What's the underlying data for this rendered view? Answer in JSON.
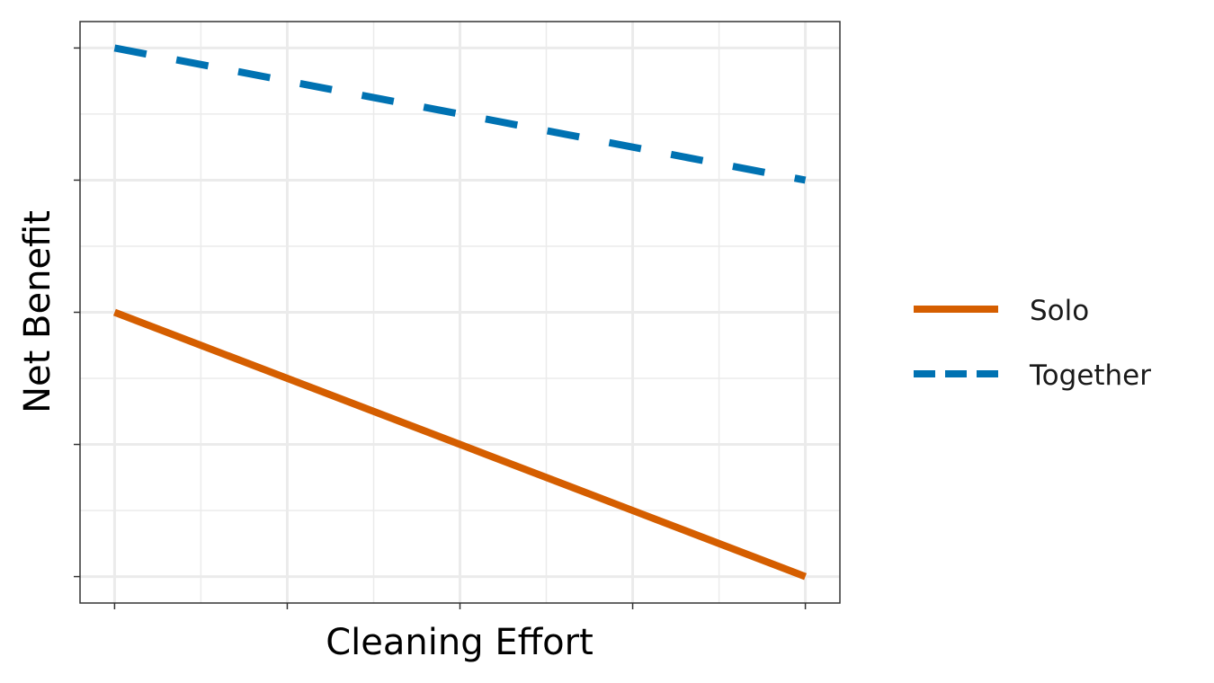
{
  "chart_data": {
    "type": "line",
    "title": "",
    "xlabel": "Cleaning Effort",
    "ylabel": "Net Benefit",
    "x": [
      0,
      1,
      2,
      3,
      4
    ],
    "xlim": [
      -0.2,
      4.2
    ],
    "ylim": [
      -0.2,
      4.2
    ],
    "grid": true,
    "legend": "right",
    "series": [
      {
        "name": "Solo",
        "values": [
          2,
          1.5,
          1,
          0.5,
          0
        ],
        "color": "#D55E00",
        "dash": "solid"
      },
      {
        "name": "Together",
        "values": [
          4,
          3.75,
          3.5,
          3.25,
          3
        ],
        "color": "#0072B2",
        "dash": "dashed"
      }
    ]
  }
}
